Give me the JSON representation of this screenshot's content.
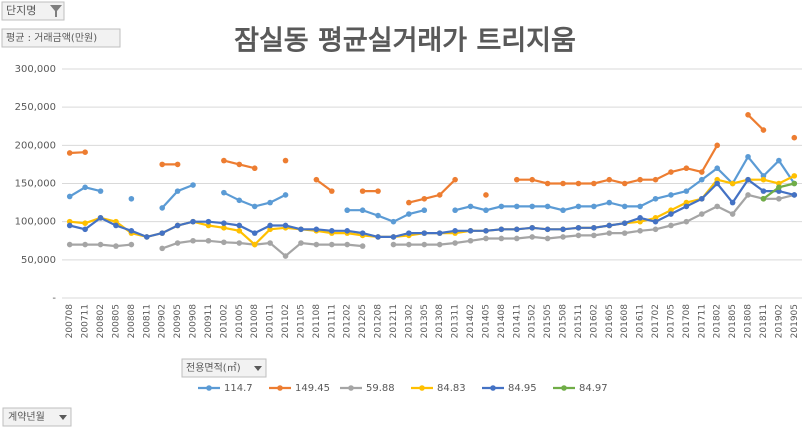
{
  "report_filter": "단지명",
  "values_field": "평균 : 거래금액(만원)",
  "legend_field": "전용면적(㎡)",
  "axis_field": "계약년월",
  "chart_data": {
    "type": "line",
    "title": "잠실동 평균실거래가 트리지움",
    "categories": [
      "200708",
      "200711",
      "200802",
      "200805",
      "200808",
      "200811",
      "200902",
      "200905",
      "200908",
      "200911",
      "201002",
      "201005",
      "201008",
      "201011",
      "201102",
      "201105",
      "201108",
      "201111",
      "201202",
      "201205",
      "201208",
      "201211",
      "201302",
      "201305",
      "201308",
      "201311",
      "201402",
      "201405",
      "201408",
      "201411",
      "201502",
      "201505",
      "201508",
      "201511",
      "201602",
      "201605",
      "201608",
      "201611",
      "201702",
      "201705",
      "201708",
      "201711",
      "201802",
      "201805",
      "201808",
      "201811",
      "201902",
      "201905"
    ],
    "series": [
      {
        "name": "114.7",
        "color": "#5b9bd5",
        "values": [
          133000,
          145000,
          140000,
          null,
          130000,
          null,
          118000,
          140000,
          148000,
          null,
          138000,
          128000,
          120000,
          125000,
          135000,
          null,
          null,
          null,
          115000,
          115000,
          108000,
          100000,
          110000,
          115000,
          null,
          115000,
          120000,
          115000,
          120000,
          120000,
          120000,
          120000,
          115000,
          120000,
          120000,
          125000,
          120000,
          120000,
          130000,
          135000,
          140000,
          155000,
          170000,
          150000,
          185000,
          160000,
          180000,
          150000
        ]
      },
      {
        "name": "149.45",
        "color": "#ed7d31",
        "values": [
          190000,
          191000,
          null,
          null,
          null,
          null,
          175000,
          175000,
          null,
          null,
          180000,
          175000,
          170000,
          null,
          180000,
          null,
          155000,
          140000,
          null,
          140000,
          140000,
          null,
          125000,
          130000,
          135000,
          155000,
          null,
          135000,
          null,
          155000,
          155000,
          150000,
          150000,
          150000,
          150000,
          155000,
          150000,
          155000,
          155000,
          165000,
          170000,
          165000,
          200000,
          null,
          240000,
          220000,
          null,
          210000
        ]
      },
      {
        "name": "59.88",
        "color": "#a5a5a5",
        "values": [
          70000,
          70000,
          70000,
          68000,
          70000,
          null,
          65000,
          72000,
          75000,
          75000,
          73000,
          72000,
          70000,
          72000,
          55000,
          72000,
          70000,
          70000,
          70000,
          68000,
          null,
          70000,
          70000,
          70000,
          70000,
          72000,
          75000,
          78000,
          78000,
          78000,
          80000,
          78000,
          80000,
          82000,
          82000,
          85000,
          85000,
          88000,
          90000,
          95000,
          100000,
          110000,
          120000,
          110000,
          135000,
          130000,
          130000,
          135000
        ]
      },
      {
        "name": "84.83",
        "color": "#ffc000",
        "values": [
          100000,
          98000,
          105000,
          100000,
          85000,
          80000,
          85000,
          95000,
          100000,
          95000,
          92000,
          88000,
          70000,
          90000,
          92000,
          90000,
          88000,
          85000,
          85000,
          82000,
          80000,
          80000,
          82000,
          85000,
          85000,
          85000,
          88000,
          88000,
          90000,
          90000,
          92000,
          90000,
          90000,
          92000,
          92000,
          95000,
          98000,
          100000,
          105000,
          115000,
          125000,
          130000,
          155000,
          150000,
          155000,
          155000,
          150000,
          160000
        ]
      },
      {
        "name": "84.95",
        "color": "#4472c4",
        "values": [
          95000,
          90000,
          105000,
          95000,
          88000,
          80000,
          85000,
          95000,
          100000,
          100000,
          98000,
          95000,
          85000,
          95000,
          95000,
          90000,
          90000,
          88000,
          88000,
          85000,
          80000,
          80000,
          85000,
          85000,
          85000,
          88000,
          88000,
          88000,
          90000,
          90000,
          92000,
          90000,
          90000,
          92000,
          92000,
          95000,
          98000,
          105000,
          100000,
          110000,
          120000,
          130000,
          150000,
          125000,
          155000,
          140000,
          140000,
          135000
        ]
      },
      {
        "name": "84.97",
        "color": "#70ad47",
        "values": [
          null,
          null,
          null,
          null,
          null,
          null,
          null,
          null,
          null,
          null,
          null,
          null,
          null,
          null,
          null,
          null,
          null,
          null,
          null,
          null,
          null,
          null,
          null,
          null,
          null,
          null,
          null,
          null,
          null,
          null,
          null,
          null,
          null,
          null,
          null,
          null,
          null,
          null,
          null,
          null,
          null,
          null,
          null,
          null,
          null,
          130000,
          145000,
          150000
        ]
      }
    ],
    "ylim": [
      0,
      300000
    ],
    "yticks": [
      {
        "value": 0,
        "label": "-"
      },
      {
        "value": 50000,
        "label": "50,000"
      },
      {
        "value": 100000,
        "label": "100,000"
      },
      {
        "value": 150000,
        "label": "150,000"
      },
      {
        "value": 200000,
        "label": "200,000"
      },
      {
        "value": 250000,
        "label": "250,000"
      },
      {
        "value": 300000,
        "label": "300,000"
      }
    ],
    "grid": true
  }
}
